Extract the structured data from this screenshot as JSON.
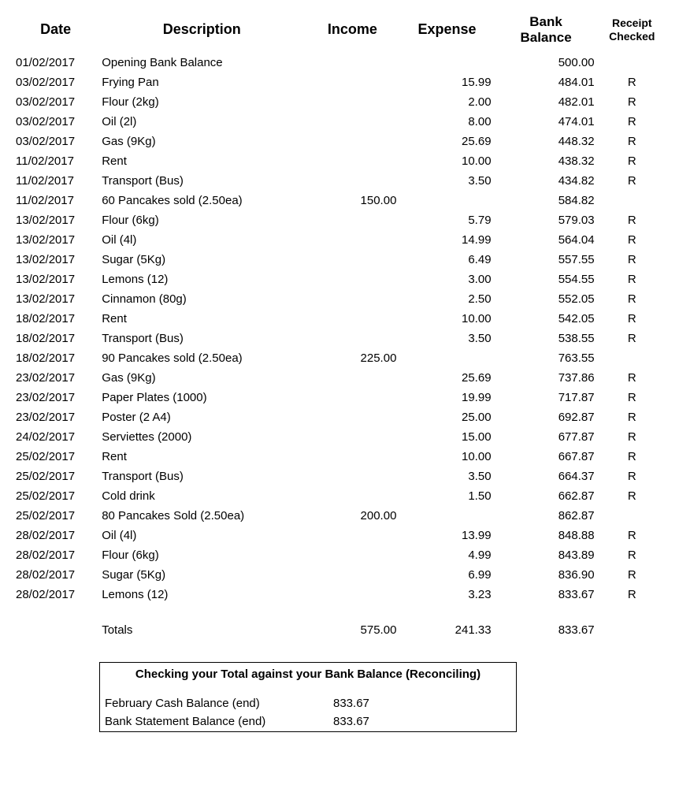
{
  "headers": {
    "date": "Date",
    "description": "Description",
    "income": "Income",
    "expense": "Expense",
    "balance": "Bank\nBalance",
    "receipt": "Receipt\nChecked"
  },
  "rows": [
    {
      "date": "01/02/2017",
      "description": "Opening Bank Balance",
      "income": "",
      "expense": "",
      "balance": "500.00",
      "receipt": ""
    },
    {
      "date": "03/02/2017",
      "description": "Frying Pan",
      "income": "",
      "expense": "15.99",
      "balance": "484.01",
      "receipt": "R"
    },
    {
      "date": "03/02/2017",
      "description": "Flour (2kg)",
      "income": "",
      "expense": "2.00",
      "balance": "482.01",
      "receipt": "R"
    },
    {
      "date": "03/02/2017",
      "description": "Oil (2l)",
      "income": "",
      "expense": "8.00",
      "balance": "474.01",
      "receipt": "R"
    },
    {
      "date": "03/02/2017",
      "description": "Gas (9Kg)",
      "income": "",
      "expense": "25.69",
      "balance": "448.32",
      "receipt": "R"
    },
    {
      "date": "11/02/2017",
      "description": "Rent",
      "income": "",
      "expense": "10.00",
      "balance": "438.32",
      "receipt": "R"
    },
    {
      "date": "11/02/2017",
      "description": "Transport (Bus)",
      "income": "",
      "expense": "3.50",
      "balance": "434.82",
      "receipt": "R"
    },
    {
      "date": "11/02/2017",
      "description": "60 Pancakes sold (2.50ea)",
      "income": "150.00",
      "expense": "",
      "balance": "584.82",
      "receipt": ""
    },
    {
      "date": "13/02/2017",
      "description": "Flour (6kg)",
      "income": "",
      "expense": "5.79",
      "balance": "579.03",
      "receipt": "R"
    },
    {
      "date": "13/02/2017",
      "description": "Oil (4l)",
      "income": "",
      "expense": "14.99",
      "balance": "564.04",
      "receipt": "R"
    },
    {
      "date": "13/02/2017",
      "description": "Sugar (5Kg)",
      "income": "",
      "expense": "6.49",
      "balance": "557.55",
      "receipt": "R"
    },
    {
      "date": "13/02/2017",
      "description": "Lemons (12)",
      "income": "",
      "expense": "3.00",
      "balance": "554.55",
      "receipt": "R"
    },
    {
      "date": "13/02/2017",
      "description": "Cinnamon (80g)",
      "income": "",
      "expense": "2.50",
      "balance": "552.05",
      "receipt": "R"
    },
    {
      "date": "18/02/2017",
      "description": "Rent",
      "income": "",
      "expense": "10.00",
      "balance": "542.05",
      "receipt": "R"
    },
    {
      "date": "18/02/2017",
      "description": "Transport (Bus)",
      "income": "",
      "expense": "3.50",
      "balance": "538.55",
      "receipt": "R"
    },
    {
      "date": "18/02/2017",
      "description": "90 Pancakes sold (2.50ea)",
      "income": "225.00",
      "expense": "",
      "balance": "763.55",
      "receipt": ""
    },
    {
      "date": "23/02/2017",
      "description": "Gas (9Kg)",
      "income": "",
      "expense": "25.69",
      "balance": "737.86",
      "receipt": "R"
    },
    {
      "date": "23/02/2017",
      "description": "Paper Plates (1000)",
      "income": "",
      "expense": "19.99",
      "balance": "717.87",
      "receipt": "R"
    },
    {
      "date": "23/02/2017",
      "description": "Poster (2 A4)",
      "income": "",
      "expense": "25.00",
      "balance": "692.87",
      "receipt": "R"
    },
    {
      "date": "24/02/2017",
      "description": "Serviettes (2000)",
      "income": "",
      "expense": "15.00",
      "balance": "677.87",
      "receipt": "R"
    },
    {
      "date": "25/02/2017",
      "description": "Rent",
      "income": "",
      "expense": "10.00",
      "balance": "667.87",
      "receipt": "R"
    },
    {
      "date": "25/02/2017",
      "description": "Transport (Bus)",
      "income": "",
      "expense": "3.50",
      "balance": "664.37",
      "receipt": "R"
    },
    {
      "date": "25/02/2017",
      "description": "Cold drink",
      "income": "",
      "expense": "1.50",
      "balance": "662.87",
      "receipt": "R"
    },
    {
      "date": "25/02/2017",
      "description": "80 Pancakes Sold (2.50ea)",
      "income": "200.00",
      "expense": "",
      "balance": "862.87",
      "receipt": ""
    },
    {
      "date": "28/02/2017",
      "description": "Oil (4l)",
      "income": "",
      "expense": "13.99",
      "balance": "848.88",
      "receipt": "R"
    },
    {
      "date": "28/02/2017",
      "description": "Flour (6kg)",
      "income": "",
      "expense": "4.99",
      "balance": "843.89",
      "receipt": "R"
    },
    {
      "date": "28/02/2017",
      "description": "Sugar (5Kg)",
      "income": "",
      "expense": "6.99",
      "balance": "836.90",
      "receipt": "R"
    },
    {
      "date": "28/02/2017",
      "description": "Lemons (12)",
      "income": "",
      "expense": "3.23",
      "balance": "833.67",
      "receipt": "R"
    }
  ],
  "totals": {
    "label": "Totals",
    "income": "575.00",
    "expense": "241.33",
    "balance": "833.67"
  },
  "reconcile": {
    "title": "Checking your Total against your Bank Balance (Reconciling)",
    "lines": [
      {
        "label": "February Cash Balance (end)",
        "value": "833.67"
      },
      {
        "label": "Bank Statement Balance (end)",
        "value": "833.67"
      }
    ]
  }
}
